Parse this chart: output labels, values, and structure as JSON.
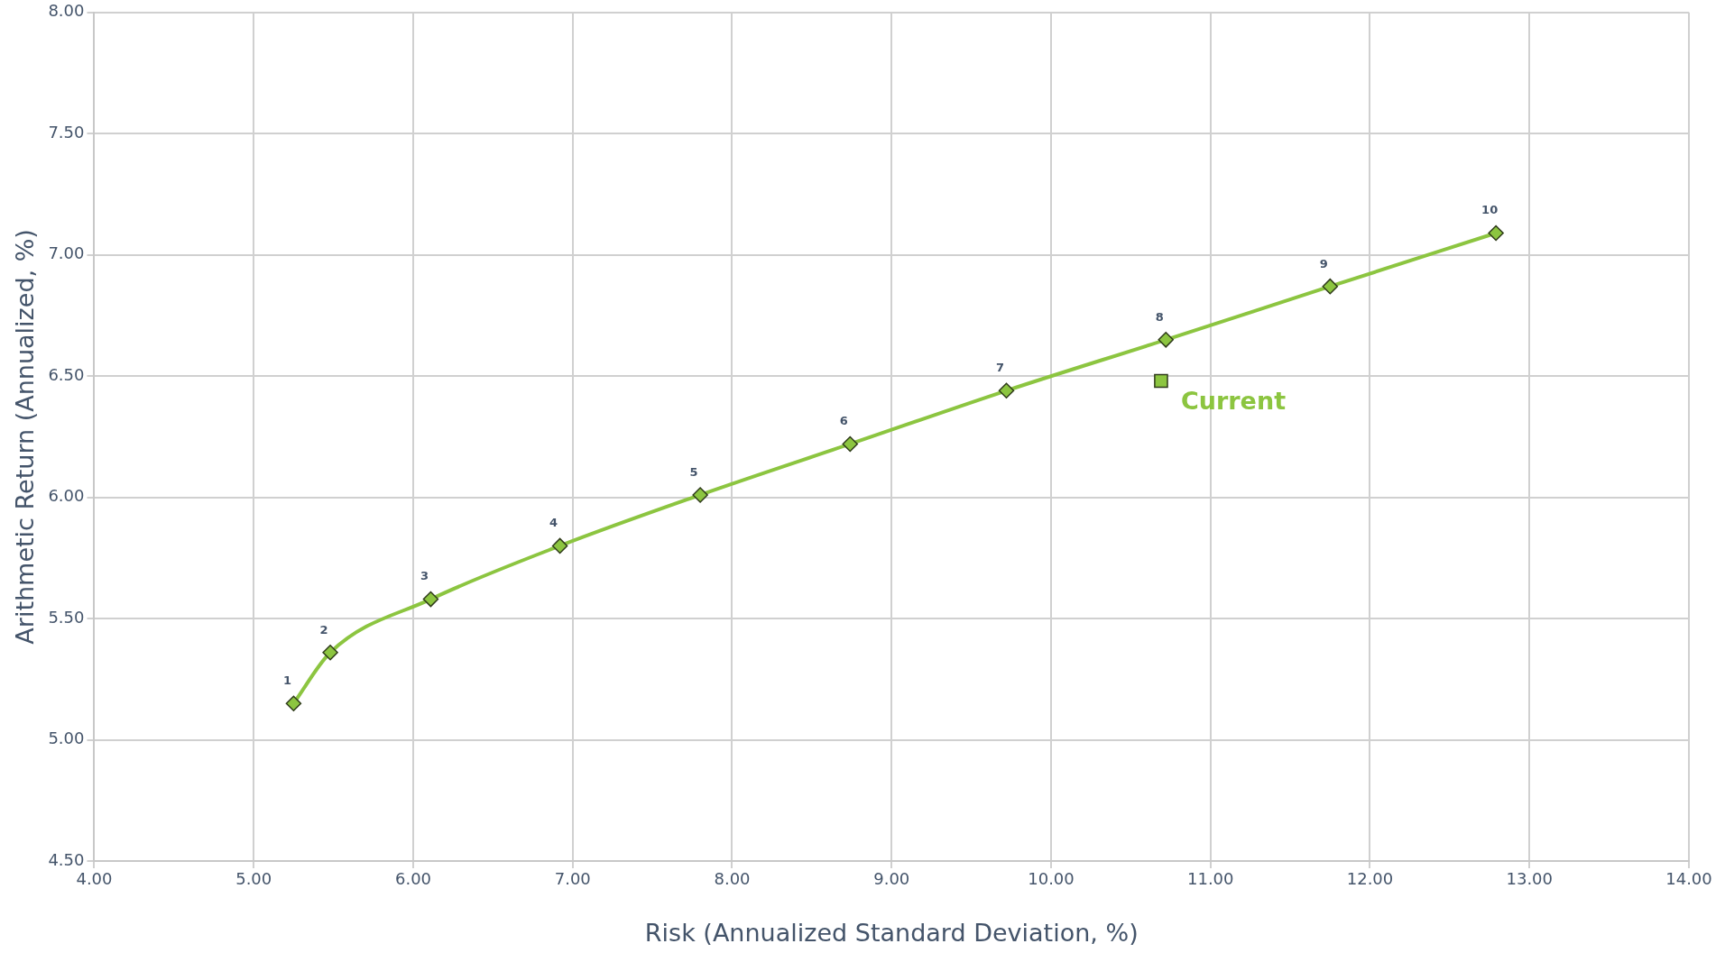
{
  "chart_data": {
    "type": "scatter",
    "xlabel": "Risk (Annualized Standard Deviation, %)",
    "ylabel": "Arithmetic Return (Annualized, %)",
    "xlim": [
      4,
      14
    ],
    "ylim": [
      4.5,
      8
    ],
    "xticks": [
      {
        "value": 4,
        "label": "4.00"
      },
      {
        "value": 5,
        "label": "5.00"
      },
      {
        "value": 6,
        "label": "6.00"
      },
      {
        "value": 7,
        "label": "7.00"
      },
      {
        "value": 8,
        "label": "8.00"
      },
      {
        "value": 9,
        "label": "9.00"
      },
      {
        "value": 10,
        "label": "10.00"
      },
      {
        "value": 11,
        "label": "11.00"
      },
      {
        "value": 12,
        "label": "12.00"
      },
      {
        "value": 13,
        "label": "13.00"
      },
      {
        "value": 14,
        "label": "14.00"
      }
    ],
    "yticks": [
      {
        "value": 4.5,
        "label": "4.50"
      },
      {
        "value": 5,
        "label": "5.00"
      },
      {
        "value": 5.5,
        "label": "5.50"
      },
      {
        "value": 6,
        "label": "6.00"
      },
      {
        "value": 6.5,
        "label": "6.50"
      },
      {
        "value": 7,
        "label": "7.00"
      },
      {
        "value": 7.5,
        "label": "7.50"
      },
      {
        "value": 8,
        "label": "8.00"
      }
    ],
    "grid": true,
    "legend": false,
    "series": [
      {
        "type": "line",
        "marker": "diamond",
        "color": "#8cc540",
        "x": [
          5.25,
          5.48,
          6.11,
          6.92,
          7.8,
          8.74,
          9.72,
          10.72,
          11.75,
          12.79
        ],
        "values": [
          5.15,
          5.36,
          5.58,
          5.8,
          6.01,
          6.22,
          6.44,
          6.65,
          6.87,
          7.09
        ]
      },
      {
        "type": "scatter",
        "marker": "square",
        "name": "Current",
        "color": "#8cc540",
        "x": [
          10.69
        ],
        "values": [
          6.48
        ]
      }
    ],
    "annotations": [
      {
        "text": "1",
        "x": 5.25,
        "y": 5.15
      },
      {
        "text": "2",
        "x": 5.48,
        "y": 5.36
      },
      {
        "text": "3",
        "x": 6.11,
        "y": 5.58
      },
      {
        "text": "4",
        "x": 6.92,
        "y": 5.8
      },
      {
        "text": "5",
        "x": 7.8,
        "y": 6.01
      },
      {
        "text": "6",
        "x": 8.74,
        "y": 6.22
      },
      {
        "text": "7",
        "x": 9.72,
        "y": 6.44
      },
      {
        "text": "8",
        "x": 10.72,
        "y": 6.65
      },
      {
        "text": "9",
        "x": 11.75,
        "y": 6.87
      },
      {
        "text": "10",
        "x": 12.79,
        "y": 7.09
      }
    ]
  }
}
